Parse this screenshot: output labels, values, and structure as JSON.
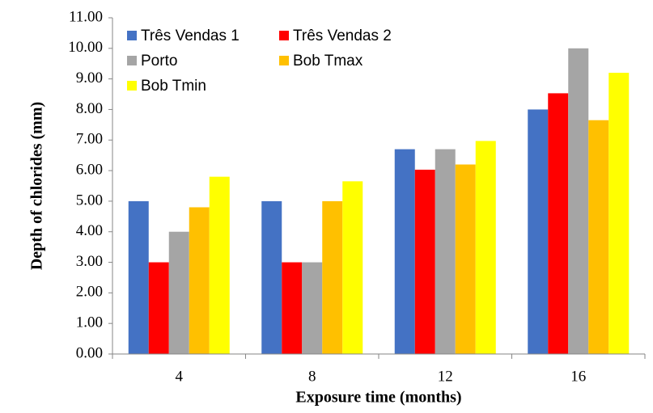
{
  "chart_data": {
    "type": "bar",
    "x_label": "Exposure time (months)",
    "y_label": "Depth of chlorides (mm)",
    "categories": [
      "4",
      "8",
      "12",
      "16"
    ],
    "series": [
      {
        "name": "Três Vendas 1",
        "color": "#4472c4",
        "values": [
          5.0,
          5.0,
          6.7,
          8.0
        ]
      },
      {
        "name": "Três Vendas 2",
        "color": "#ff0000",
        "values": [
          3.0,
          3.0,
          6.03,
          8.53
        ]
      },
      {
        "name": "Porto",
        "color": "#a5a5a5",
        "values": [
          4.0,
          3.0,
          6.7,
          10.0
        ]
      },
      {
        "name": "Bob Tmax",
        "color": "#ffc000",
        "values": [
          4.8,
          5.0,
          6.2,
          7.65
        ]
      },
      {
        "name": "Bob Tmin",
        "color": "#ffff00",
        "values": [
          5.8,
          5.65,
          6.97,
          9.2
        ]
      }
    ],
    "ylim": [
      0,
      11
    ],
    "yticks": [
      {
        "value": 0,
        "label": "0.00"
      },
      {
        "value": 1,
        "label": "1.00"
      },
      {
        "value": 2,
        "label": "2.00"
      },
      {
        "value": 3,
        "label": "3.00"
      },
      {
        "value": 4,
        "label": "4.00"
      },
      {
        "value": 5,
        "label": "5.00"
      },
      {
        "value": 6,
        "label": "6.00"
      },
      {
        "value": 7,
        "label": "7.00"
      },
      {
        "value": 8,
        "label": "8.00"
      },
      {
        "value": 9,
        "label": "9.00"
      },
      {
        "value": 10,
        "label": "10.00"
      },
      {
        "value": 11,
        "label": "11.00"
      }
    ],
    "grid": false,
    "legend_position": "upper-left"
  }
}
